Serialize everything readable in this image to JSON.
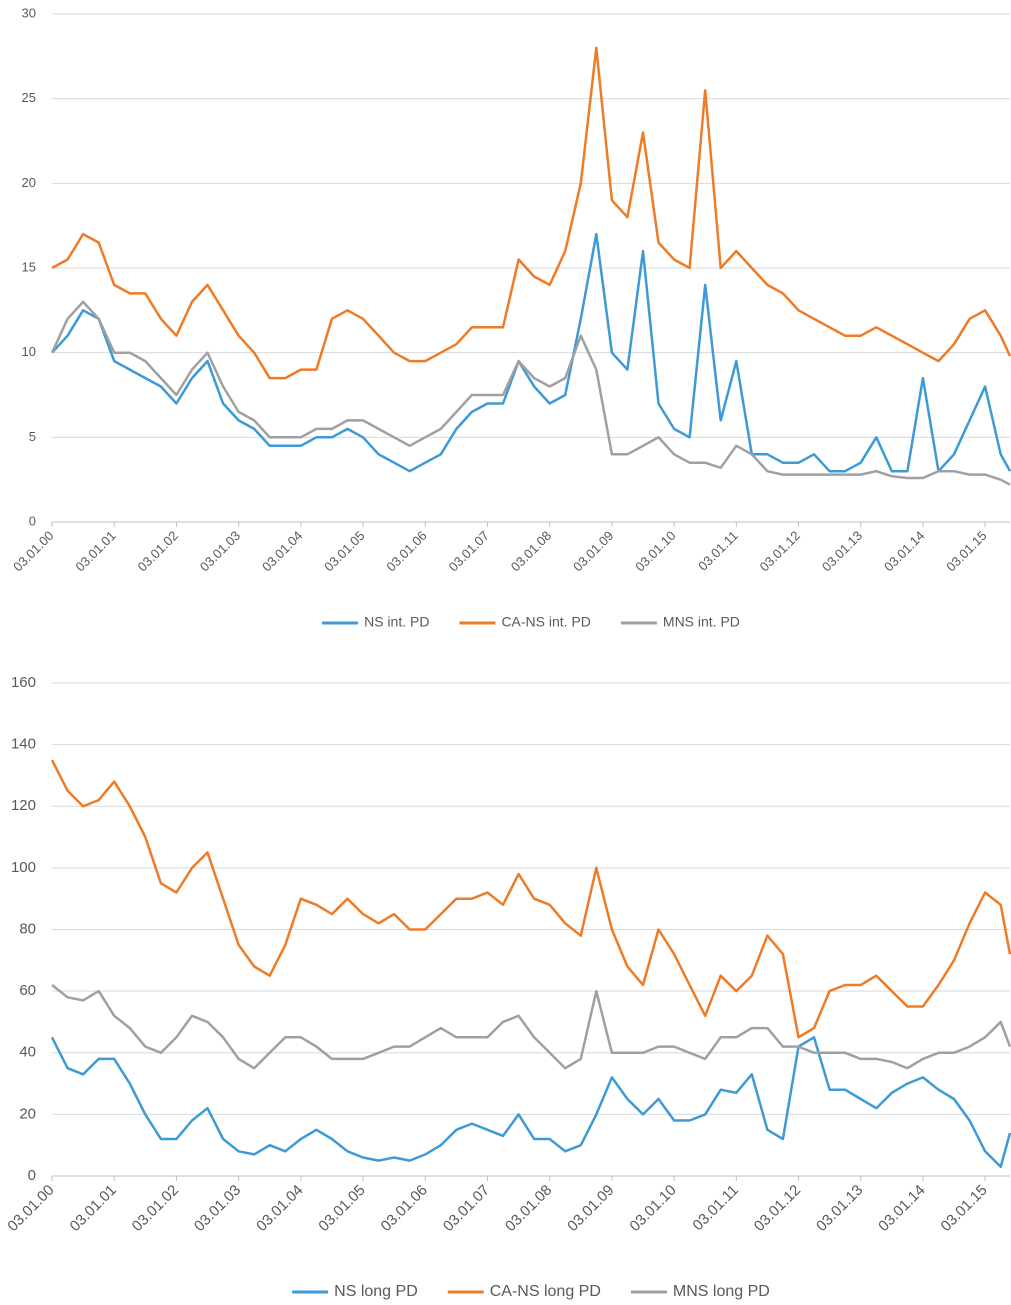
{
  "chart_data": [
    {
      "type": "line",
      "x": [
        0,
        0.25,
        0.5,
        0.75,
        1,
        1.25,
        1.5,
        1.75,
        2,
        2.25,
        2.5,
        2.75,
        3,
        3.25,
        3.5,
        3.75,
        4,
        4.25,
        4.5,
        4.75,
        5,
        5.25,
        5.5,
        5.75,
        6,
        6.25,
        6.5,
        6.75,
        7,
        7.25,
        7.5,
        7.75,
        8,
        8.25,
        8.5,
        8.75,
        9,
        9.25,
        9.5,
        9.75,
        10,
        10.25,
        10.5,
        10.75,
        11,
        11.25,
        11.5,
        11.75,
        12,
        12.25,
        12.5,
        12.75,
        13,
        13.25,
        13.5,
        13.75,
        14,
        14.25,
        14.5,
        14.75,
        15,
        15.25,
        15.4
      ],
      "series": [
        {
          "name": "NS int. PD",
          "color": "#3d9ad6",
          "values": [
            10,
            11,
            12.5,
            12,
            9.5,
            9,
            8.5,
            8,
            7,
            8.5,
            9.5,
            7,
            6,
            5.5,
            4.5,
            4.5,
            4.5,
            5,
            5,
            5.5,
            5,
            4,
            3.5,
            3,
            3.5,
            4,
            5.5,
            6.5,
            7,
            7,
            9.5,
            8,
            7,
            7.5,
            12,
            17,
            10,
            9,
            16,
            7,
            5.5,
            5,
            14,
            6,
            9.5,
            4,
            4,
            3.5,
            3.5,
            4,
            3,
            3,
            3.5,
            5,
            3,
            3,
            8.5,
            3,
            4,
            6,
            8,
            4,
            3
          ]
        },
        {
          "name": "CA-NS int. PD",
          "color": "#ee7b25",
          "values": [
            15,
            15.5,
            17,
            16.5,
            14,
            13.5,
            13.5,
            12,
            11,
            13,
            14,
            12.5,
            11,
            10,
            8.5,
            8.5,
            9,
            9,
            12,
            12.5,
            12,
            11,
            10,
            9.5,
            9.5,
            10,
            10.5,
            11.5,
            11.5,
            11.5,
            15.5,
            14.5,
            14,
            16,
            20,
            28,
            19,
            18,
            23,
            16.5,
            15.5,
            15,
            25.5,
            15,
            16,
            15,
            14,
            13.5,
            12.5,
            12,
            11.5,
            11,
            11,
            11.5,
            11,
            10.5,
            10,
            9.5,
            10.5,
            12,
            12.5,
            11,
            9.8
          ]
        },
        {
          "name": "MNS int. PD",
          "color": "#a0a0a0",
          "values": [
            10,
            12,
            13,
            12,
            10,
            10,
            9.5,
            8.5,
            7.5,
            9,
            10,
            8,
            6.5,
            6,
            5,
            5,
            5,
            5.5,
            5.5,
            6,
            6,
            5.5,
            5,
            4.5,
            5,
            5.5,
            6.5,
            7.5,
            7.5,
            7.5,
            9.5,
            8.5,
            8,
            8.5,
            11,
            9,
            4,
            4,
            4.5,
            5,
            4,
            3.5,
            3.5,
            3.2,
            4.5,
            4,
            3,
            2.8,
            2.8,
            2.8,
            2.8,
            2.8,
            2.8,
            3,
            2.7,
            2.6,
            2.6,
            3,
            3,
            2.8,
            2.8,
            2.5,
            2.2
          ]
        }
      ],
      "xlim": [
        0,
        15.4
      ],
      "xticks": [
        {
          "value": 0,
          "label": "03.01.00"
        },
        {
          "value": 1,
          "label": "03.01.01"
        },
        {
          "value": 2,
          "label": "03.01.02"
        },
        {
          "value": 3,
          "label": "03.01.03"
        },
        {
          "value": 4,
          "label": "03.01.04"
        },
        {
          "value": 5,
          "label": "03.01.05"
        },
        {
          "value": 6,
          "label": "03.01.06"
        },
        {
          "value": 7,
          "label": "03.01.07"
        },
        {
          "value": 8,
          "label": "03.01.08"
        },
        {
          "value": 9,
          "label": "03.01.09"
        },
        {
          "value": 10,
          "label": "03.01.10"
        },
        {
          "value": 11,
          "label": "03.01.11"
        },
        {
          "value": 12,
          "label": "03.01.12"
        },
        {
          "value": 13,
          "label": "03.01.13"
        },
        {
          "value": 14,
          "label": "03.01.14"
        },
        {
          "value": 15,
          "label": "03.01.15"
        }
      ],
      "ylim": [
        0,
        30
      ],
      "yticks": [
        0,
        5,
        10,
        15,
        20,
        25,
        30
      ],
      "grid": true,
      "legend": "bottom"
    },
    {
      "type": "line",
      "x": [
        0,
        0.25,
        0.5,
        0.75,
        1,
        1.25,
        1.5,
        1.75,
        2,
        2.25,
        2.5,
        2.75,
        3,
        3.25,
        3.5,
        3.75,
        4,
        4.25,
        4.5,
        4.75,
        5,
        5.25,
        5.5,
        5.75,
        6,
        6.25,
        6.5,
        6.75,
        7,
        7.25,
        7.5,
        7.75,
        8,
        8.25,
        8.5,
        8.75,
        9,
        9.25,
        9.5,
        9.75,
        10,
        10.25,
        10.5,
        10.75,
        11,
        11.25,
        11.5,
        11.75,
        12,
        12.25,
        12.5,
        12.75,
        13,
        13.25,
        13.5,
        13.75,
        14,
        14.25,
        14.5,
        14.75,
        15,
        15.25,
        15.4
      ],
      "series": [
        {
          "name": "NS long PD",
          "color": "#3d9ad6",
          "values": [
            45,
            35,
            33,
            38,
            38,
            30,
            20,
            12,
            12,
            18,
            22,
            12,
            8,
            7,
            10,
            8,
            12,
            15,
            12,
            8,
            6,
            5,
            6,
            5,
            7,
            10,
            15,
            17,
            15,
            13,
            20,
            12,
            12,
            8,
            10,
            20,
            32,
            25,
            20,
            25,
            18,
            18,
            20,
            28,
            27,
            33,
            15,
            12,
            42,
            45,
            28,
            28,
            25,
            22,
            27,
            30,
            32,
            28,
            25,
            18,
            8,
            3,
            14
          ]
        },
        {
          "name": "CA-NS long PD",
          "color": "#ee7b25",
          "values": [
            135,
            125,
            120,
            122,
            128,
            120,
            110,
            95,
            92,
            100,
            105,
            90,
            75,
            68,
            65,
            75,
            90,
            88,
            85,
            90,
            85,
            82,
            85,
            80,
            80,
            85,
            90,
            90,
            92,
            88,
            98,
            90,
            88,
            82,
            78,
            100,
            80,
            68,
            62,
            80,
            72,
            62,
            52,
            65,
            60,
            65,
            78,
            72,
            45,
            48,
            60,
            62,
            62,
            65,
            60,
            55,
            55,
            62,
            70,
            82,
            92,
            88,
            72
          ]
        },
        {
          "name": "MNS long PD",
          "color": "#a0a0a0",
          "values": [
            62,
            58,
            57,
            60,
            52,
            48,
            42,
            40,
            45,
            52,
            50,
            45,
            38,
            35,
            40,
            45,
            45,
            42,
            38,
            38,
            38,
            40,
            42,
            42,
            45,
            48,
            45,
            45,
            45,
            50,
            52,
            45,
            40,
            35,
            38,
            60,
            40,
            40,
            40,
            42,
            42,
            40,
            38,
            45,
            45,
            48,
            48,
            42,
            42,
            40,
            40,
            40,
            38,
            38,
            37,
            35,
            38,
            40,
            40,
            42,
            45,
            50,
            42
          ]
        }
      ],
      "xlim": [
        0,
        15.4
      ],
      "xticks": [
        {
          "value": 0,
          "label": "03.01.00"
        },
        {
          "value": 1,
          "label": "03.01.01"
        },
        {
          "value": 2,
          "label": "03.01.02"
        },
        {
          "value": 3,
          "label": "03.01.03"
        },
        {
          "value": 4,
          "label": "03.01.04"
        },
        {
          "value": 5,
          "label": "03.01.05"
        },
        {
          "value": 6,
          "label": "03.01.06"
        },
        {
          "value": 7,
          "label": "03.01.07"
        },
        {
          "value": 8,
          "label": "03.01.08"
        },
        {
          "value": 9,
          "label": "03.01.09"
        },
        {
          "value": 10,
          "label": "03.01.10"
        },
        {
          "value": 11,
          "label": "03.01.11"
        },
        {
          "value": 12,
          "label": "03.01.12"
        },
        {
          "value": 13,
          "label": "03.01.13"
        },
        {
          "value": 14,
          "label": "03.01.14"
        },
        {
          "value": 15,
          "label": "03.01.15"
        }
      ],
      "ylim": [
        0,
        160
      ],
      "yticks": [
        0,
        20,
        40,
        60,
        80,
        100,
        120,
        140,
        160
      ],
      "grid": true,
      "legend": "bottom"
    }
  ]
}
